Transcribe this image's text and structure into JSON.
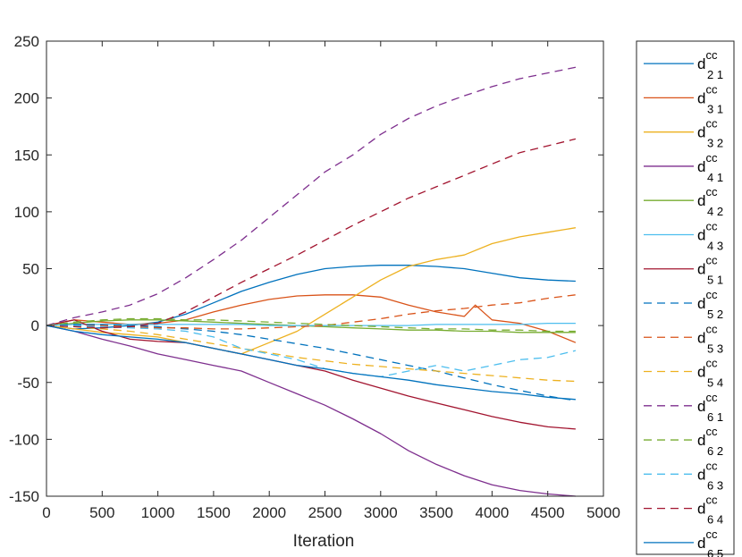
{
  "chart_data": {
    "type": "line",
    "xlabel": "Iteration",
    "ylabel": "",
    "xlim": [
      0,
      5000
    ],
    "ylim": [
      -150,
      250
    ],
    "xticks": [
      0,
      500,
      1000,
      1500,
      2000,
      2500,
      3000,
      3500,
      4000,
      4500,
      5000
    ],
    "yticks": [
      -150,
      -100,
      -50,
      0,
      50,
      100,
      150,
      200,
      250
    ],
    "grid": false,
    "legend_position": "outside-right",
    "legend_symbol": "d",
    "legend_superscript": "cc",
    "series": [
      {
        "name": "d21",
        "sub": "2 1",
        "color": "#0072BD",
        "dash": "solid",
        "x": [
          0,
          250,
          500,
          750,
          1000,
          1250,
          1500,
          1750,
          2000,
          2250,
          2500,
          2750,
          3000,
          3250,
          3500,
          3750,
          4000,
          4250,
          4500,
          4750
        ],
        "y": [
          0,
          -3,
          -2,
          0,
          3,
          10,
          20,
          30,
          38,
          45,
          50,
          52,
          53,
          53,
          52,
          50,
          46,
          42,
          40,
          39
        ]
      },
      {
        "name": "d31",
        "sub": "3 1",
        "color": "#D95319",
        "dash": "solid",
        "x": [
          0,
          250,
          500,
          750,
          1000,
          1250,
          1500,
          1750,
          2000,
          2250,
          2500,
          2750,
          3000,
          3250,
          3500,
          3750,
          3850,
          4000,
          4250,
          4500,
          4750
        ],
        "y": [
          0,
          5,
          3,
          1,
          2,
          5,
          12,
          18,
          23,
          26,
          27,
          27,
          25,
          18,
          12,
          8,
          18,
          5,
          2,
          -5,
          -15
        ]
      },
      {
        "name": "d32",
        "sub": "3 2",
        "color": "#EDB120",
        "dash": "solid",
        "x": [
          0,
          250,
          500,
          750,
          1000,
          1250,
          1500,
          1750,
          2000,
          2250,
          2500,
          2750,
          3000,
          3250,
          3500,
          3750,
          4000,
          4250,
          4500,
          4750
        ],
        "y": [
          0,
          -3,
          -6,
          -8,
          -10,
          -15,
          -20,
          -25,
          -15,
          -5,
          10,
          25,
          40,
          52,
          58,
          62,
          72,
          78,
          82,
          86
        ]
      },
      {
        "name": "d41",
        "sub": "4 1",
        "color": "#7E2F8E",
        "dash": "solid",
        "x": [
          0,
          250,
          500,
          750,
          1000,
          1250,
          1500,
          1750,
          2000,
          2250,
          2500,
          2750,
          3000,
          3250,
          3500,
          3750,
          4000,
          4250,
          4500,
          4750
        ],
        "y": [
          0,
          -5,
          -12,
          -18,
          -25,
          -30,
          -35,
          -40,
          -50,
          -60,
          -70,
          -82,
          -95,
          -110,
          -122,
          -132,
          -140,
          -145,
          -148,
          -150
        ]
      },
      {
        "name": "d42",
        "sub": "4 2",
        "color": "#77AC30",
        "dash": "solid",
        "x": [
          0,
          250,
          500,
          750,
          1000,
          1250,
          1500,
          1750,
          2000,
          2250,
          2500,
          2750,
          3000,
          3250,
          3500,
          3750,
          4000,
          4250,
          4500,
          4750
        ],
        "y": [
          0,
          2,
          4,
          5,
          5,
          4,
          3,
          2,
          1,
          0,
          -1,
          -2,
          -3,
          -4,
          -4,
          -5,
          -5,
          -6,
          -6,
          -6
        ]
      },
      {
        "name": "d43",
        "sub": "4 3",
        "color": "#4DBEEE",
        "dash": "solid",
        "x": [
          0,
          250,
          500,
          750,
          1000,
          1250,
          1500,
          1750,
          2000,
          2250,
          2500,
          2750,
          3000,
          3250,
          3500,
          3750,
          4000,
          4250,
          4500,
          4750
        ],
        "y": [
          0,
          1,
          1,
          1,
          1,
          1,
          1,
          1,
          0,
          0,
          0,
          0,
          0,
          0,
          1,
          1,
          1,
          1,
          2,
          2
        ]
      },
      {
        "name": "d51",
        "sub": "5 1",
        "color": "#A2142F",
        "dash": "solid",
        "x": [
          0,
          250,
          500,
          750,
          1000,
          1250,
          1500,
          1750,
          2000,
          2250,
          2500,
          2750,
          3000,
          3250,
          3500,
          3750,
          4000,
          4250,
          4500,
          4750
        ],
        "y": [
          0,
          5,
          -5,
          -12,
          -14,
          -15,
          -20,
          -25,
          -30,
          -35,
          -40,
          -48,
          -55,
          -62,
          -68,
          -74,
          -80,
          -85,
          -89,
          -91
        ]
      },
      {
        "name": "d52",
        "sub": "5 2",
        "color": "#0072BD",
        "dash": "dashed",
        "x": [
          0,
          250,
          500,
          750,
          1000,
          1250,
          1500,
          1750,
          2000,
          2250,
          2500,
          2750,
          3000,
          3250,
          3500,
          3750,
          4000,
          4250,
          4500,
          4750
        ],
        "y": [
          0,
          1,
          1,
          0,
          -1,
          -3,
          -5,
          -8,
          -12,
          -16,
          -20,
          -25,
          -30,
          -35,
          -40,
          -46,
          -52,
          -57,
          -62,
          -66
        ]
      },
      {
        "name": "d53",
        "sub": "5 3",
        "color": "#D95319",
        "dash": "dashed",
        "x": [
          0,
          250,
          500,
          750,
          1000,
          1250,
          1500,
          1750,
          2000,
          2250,
          2500,
          2750,
          3000,
          3250,
          3500,
          3750,
          4000,
          4250,
          4500,
          4750
        ],
        "y": [
          0,
          0,
          0,
          -1,
          -2,
          -2,
          -3,
          -3,
          -2,
          -1,
          0,
          3,
          6,
          10,
          13,
          15,
          18,
          20,
          24,
          27
        ]
      },
      {
        "name": "d54",
        "sub": "5 4",
        "color": "#EDB120",
        "dash": "dashed",
        "x": [
          0,
          250,
          500,
          750,
          1000,
          1250,
          1500,
          1750,
          2000,
          2250,
          2500,
          2750,
          3000,
          3250,
          3500,
          3750,
          4000,
          4250,
          4500,
          4750
        ],
        "y": [
          0,
          -1,
          -3,
          -5,
          -8,
          -12,
          -16,
          -20,
          -24,
          -28,
          -31,
          -34,
          -36,
          -38,
          -40,
          -42,
          -44,
          -46,
          -48,
          -49
        ]
      },
      {
        "name": "d61",
        "sub": "6 1",
        "color": "#7E2F8E",
        "dash": "dashed",
        "x": [
          0,
          250,
          500,
          750,
          1000,
          1250,
          1500,
          1750,
          2000,
          2250,
          2500,
          2750,
          3000,
          3250,
          3500,
          3750,
          4000,
          4250,
          4500,
          4750
        ],
        "y": [
          0,
          7,
          12,
          18,
          28,
          42,
          58,
          75,
          95,
          115,
          135,
          150,
          168,
          182,
          193,
          202,
          210,
          217,
          222,
          227
        ]
      },
      {
        "name": "d62",
        "sub": "6 2",
        "color": "#77AC30",
        "dash": "dashed",
        "x": [
          0,
          250,
          500,
          750,
          1000,
          1250,
          1500,
          1750,
          2000,
          2250,
          2500,
          2750,
          3000,
          3250,
          3500,
          3750,
          4000,
          4250,
          4500,
          4750
        ],
        "y": [
          0,
          3,
          5,
          6,
          6,
          5,
          5,
          4,
          3,
          2,
          1,
          0,
          -1,
          -2,
          -3,
          -3,
          -4,
          -4,
          -5,
          -5
        ]
      },
      {
        "name": "d63",
        "sub": "6 3",
        "color": "#4DBEEE",
        "dash": "dashed",
        "x": [
          0,
          250,
          500,
          750,
          1000,
          1250,
          1500,
          1750,
          2000,
          2250,
          2500,
          2750,
          3000,
          3250,
          3500,
          3750,
          4000,
          4250,
          4500,
          4750
        ],
        "y": [
          0,
          0,
          -1,
          -2,
          -3,
          -5,
          -10,
          -20,
          -25,
          -30,
          -38,
          -42,
          -45,
          -40,
          -35,
          -40,
          -35,
          -30,
          -28,
          -22
        ]
      },
      {
        "name": "d64",
        "sub": "6 4",
        "color": "#A2142F",
        "dash": "dashed",
        "x": [
          0,
          250,
          500,
          750,
          1000,
          1250,
          1500,
          1750,
          2000,
          2250,
          2500,
          2750,
          3000,
          3250,
          3500,
          3750,
          4000,
          4250,
          4500,
          4750
        ],
        "y": [
          0,
          -1,
          -2,
          -1,
          2,
          12,
          25,
          38,
          50,
          62,
          75,
          88,
          100,
          112,
          122,
          132,
          142,
          152,
          158,
          164
        ]
      },
      {
        "name": "d65",
        "sub": "6 5",
        "color": "#0072BD",
        "dash": "solid",
        "x": [
          0,
          250,
          500,
          750,
          1000,
          1250,
          1500,
          1750,
          2000,
          2250,
          2500,
          2750,
          3000,
          3250,
          3500,
          3750,
          4000,
          4250,
          4500,
          4750
        ],
        "y": [
          0,
          -5,
          -8,
          -10,
          -12,
          -15,
          -20,
          -25,
          -30,
          -35,
          -38,
          -42,
          -45,
          -48,
          -52,
          -55,
          -58,
          -60,
          -63,
          -65
        ]
      }
    ]
  }
}
